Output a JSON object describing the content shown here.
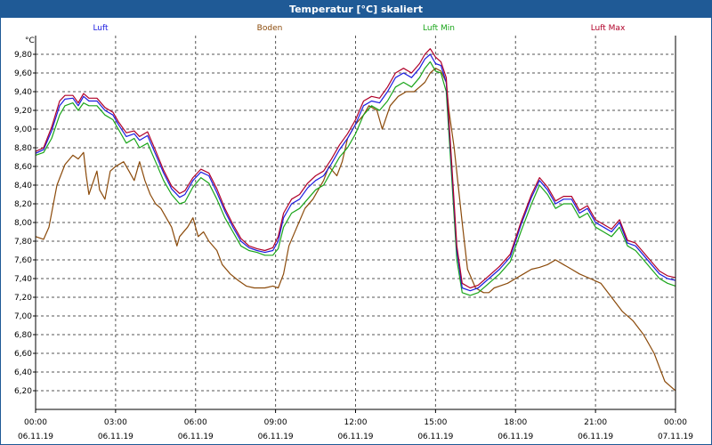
{
  "chart_data": {
    "type": "line",
    "title": "Temperatur [°C] skaliert",
    "ylabel": "°C",
    "ylim": [
      6.0,
      10.0
    ],
    "xlim": [
      0,
      24
    ],
    "y_ticks": [
      {
        "value": 6.2,
        "label": "6,20"
      },
      {
        "value": 6.4,
        "label": "6,40"
      },
      {
        "value": 6.6,
        "label": "6,60"
      },
      {
        "value": 6.8,
        "label": "6,80"
      },
      {
        "value": 7.0,
        "label": "7,00"
      },
      {
        "value": 7.2,
        "label": "7,20"
      },
      {
        "value": 7.4,
        "label": "7,40"
      },
      {
        "value": 7.6,
        "label": "7,60"
      },
      {
        "value": 7.8,
        "label": "7,80"
      },
      {
        "value": 8.0,
        "label": "8,00"
      },
      {
        "value": 8.2,
        "label": "8,20"
      },
      {
        "value": 8.4,
        "label": "8,40"
      },
      {
        "value": 8.6,
        "label": "8,60"
      },
      {
        "value": 8.8,
        "label": "8,80"
      },
      {
        "value": 9.0,
        "label": "9,00"
      },
      {
        "value": 9.2,
        "label": "9,20"
      },
      {
        "value": 9.4,
        "label": "9,40"
      },
      {
        "value": 9.6,
        "label": "9,60"
      },
      {
        "value": 9.8,
        "label": "9,80"
      }
    ],
    "x_ticks": [
      {
        "value": 0,
        "time": "00:00",
        "date": "06.11.19"
      },
      {
        "value": 3,
        "time": "03:00",
        "date": "06.11.19"
      },
      {
        "value": 6,
        "time": "06:00",
        "date": "06.11.19"
      },
      {
        "value": 9,
        "time": "09:00",
        "date": "06.11.19"
      },
      {
        "value": 12,
        "time": "12:00",
        "date": "06.11.19"
      },
      {
        "value": 15,
        "time": "15:00",
        "date": "06.11.19"
      },
      {
        "value": 18,
        "time": "18:00",
        "date": "06.11.19"
      },
      {
        "value": 21,
        "time": "21:00",
        "date": "06.11.19"
      },
      {
        "value": 24,
        "time": "00:00",
        "date": "07.11.19"
      }
    ],
    "grid": true,
    "legend_position": "top",
    "series": [
      {
        "name": "Boden",
        "color": "#8b4a0a",
        "x": [
          0,
          0.3,
          0.5,
          0.8,
          1.1,
          1.4,
          1.6,
          1.8,
          1.9,
          2.0,
          2.3,
          2.4,
          2.6,
          2.8,
          3.0,
          3.3,
          3.5,
          3.7,
          3.9,
          4.1,
          4.3,
          4.5,
          4.7,
          4.9,
          5.1,
          5.3,
          5.4,
          5.7,
          5.9,
          6.1,
          6.3,
          6.5,
          6.8,
          7.0,
          7.3,
          7.6,
          7.9,
          8.2,
          8.6,
          8.9,
          9.1,
          9.3,
          9.5,
          9.8,
          10.1,
          10.4,
          10.6,
          10.8,
          11.0,
          11.3,
          11.5,
          11.7,
          12.0,
          12.3,
          12.5,
          12.8,
          13.0,
          13.3,
          13.6,
          13.9,
          14.2,
          14.4,
          14.6,
          14.8,
          15.0,
          15.2,
          15.4,
          15.5,
          15.7,
          16.0,
          16.2,
          16.5,
          16.8,
          17.0,
          17.2,
          17.4,
          17.7,
          18.0,
          18.3,
          18.6,
          18.9,
          19.2,
          19.5,
          19.8,
          20.1,
          20.4,
          20.8,
          21.2,
          21.6,
          22.0,
          22.4,
          22.8,
          23.2,
          23.4,
          23.6,
          23.8,
          24.0
        ],
        "values": [
          7.85,
          7.82,
          7.95,
          8.4,
          8.62,
          8.72,
          8.68,
          8.75,
          8.5,
          8.3,
          8.55,
          8.35,
          8.25,
          8.55,
          8.6,
          8.65,
          8.55,
          8.45,
          8.65,
          8.45,
          8.3,
          8.2,
          8.15,
          8.05,
          7.95,
          7.75,
          7.85,
          7.95,
          8.05,
          7.85,
          7.9,
          7.8,
          7.7,
          7.55,
          7.45,
          7.38,
          7.32,
          7.3,
          7.3,
          7.32,
          7.3,
          7.45,
          7.75,
          7.95,
          8.15,
          8.25,
          8.35,
          8.45,
          8.6,
          8.5,
          8.65,
          8.9,
          9.05,
          9.15,
          9.25,
          9.2,
          9.0,
          9.25,
          9.35,
          9.4,
          9.4,
          9.45,
          9.5,
          9.6,
          9.65,
          9.62,
          9.5,
          9.2,
          8.8,
          8.0,
          7.5,
          7.3,
          7.25,
          7.25,
          7.3,
          7.32,
          7.35,
          7.4,
          7.45,
          7.5,
          7.52,
          7.55,
          7.6,
          7.55,
          7.5,
          7.45,
          7.4,
          7.35,
          7.2,
          7.05,
          6.95,
          6.8,
          6.6,
          6.45,
          6.3,
          6.25,
          6.2
        ]
      },
      {
        "name": "Luft Min",
        "color": "#1aa51a",
        "x": [
          0,
          0.3,
          0.6,
          0.9,
          1.1,
          1.4,
          1.6,
          1.8,
          2.0,
          2.3,
          2.6,
          2.9,
          3.1,
          3.4,
          3.7,
          3.9,
          4.2,
          4.5,
          4.8,
          5.1,
          5.4,
          5.6,
          5.9,
          6.2,
          6.5,
          6.8,
          7.1,
          7.4,
          7.7,
          8.0,
          8.3,
          8.6,
          8.9,
          9.1,
          9.3,
          9.6,
          9.9,
          10.2,
          10.5,
          10.8,
          11.1,
          11.4,
          11.7,
          12.0,
          12.3,
          12.6,
          12.9,
          13.2,
          13.5,
          13.8,
          14.1,
          14.4,
          14.6,
          14.8,
          15.0,
          15.2,
          15.4,
          15.6,
          15.8,
          16.0,
          16.3,
          16.6,
          17.0,
          17.4,
          17.8,
          18.2,
          18.6,
          18.9,
          19.2,
          19.5,
          19.8,
          20.1,
          20.4,
          20.7,
          21.0,
          21.3,
          21.6,
          21.9,
          22.2,
          22.5,
          22.8,
          23.1,
          23.4,
          23.7,
          24.0
        ],
        "values": [
          8.72,
          8.75,
          8.9,
          9.15,
          9.25,
          9.28,
          9.2,
          9.28,
          9.25,
          9.25,
          9.15,
          9.1,
          9.0,
          8.85,
          8.9,
          8.8,
          8.85,
          8.65,
          8.45,
          8.3,
          8.2,
          8.22,
          8.38,
          8.48,
          8.42,
          8.25,
          8.05,
          7.9,
          7.75,
          7.7,
          7.68,
          7.65,
          7.65,
          7.72,
          7.95,
          8.1,
          8.15,
          8.25,
          8.35,
          8.4,
          8.55,
          8.7,
          8.8,
          8.95,
          9.15,
          9.25,
          9.2,
          9.3,
          9.45,
          9.5,
          9.45,
          9.55,
          9.65,
          9.72,
          9.62,
          9.6,
          9.4,
          8.5,
          7.6,
          7.25,
          7.22,
          7.25,
          7.35,
          7.45,
          7.58,
          7.9,
          8.2,
          8.4,
          8.3,
          8.15,
          8.2,
          8.2,
          8.05,
          8.1,
          7.95,
          7.9,
          7.85,
          7.95,
          7.75,
          7.7,
          7.6,
          7.5,
          7.4,
          7.35,
          7.32
        ]
      },
      {
        "name": "Luft",
        "color": "#1c1ce0",
        "x": [
          0,
          0.3,
          0.6,
          0.9,
          1.1,
          1.4,
          1.6,
          1.8,
          2.0,
          2.3,
          2.6,
          2.9,
          3.1,
          3.4,
          3.7,
          3.9,
          4.2,
          4.5,
          4.8,
          5.1,
          5.4,
          5.6,
          5.9,
          6.2,
          6.5,
          6.8,
          7.1,
          7.4,
          7.7,
          8.0,
          8.3,
          8.6,
          8.9,
          9.1,
          9.3,
          9.6,
          9.9,
          10.2,
          10.5,
          10.8,
          11.1,
          11.4,
          11.7,
          12.0,
          12.3,
          12.6,
          12.9,
          13.2,
          13.5,
          13.8,
          14.1,
          14.4,
          14.6,
          14.8,
          15.0,
          15.2,
          15.4,
          15.6,
          15.8,
          16.0,
          16.3,
          16.6,
          17.0,
          17.4,
          17.8,
          18.2,
          18.6,
          18.9,
          19.2,
          19.5,
          19.8,
          20.1,
          20.4,
          20.7,
          21.0,
          21.3,
          21.6,
          21.9,
          22.2,
          22.5,
          22.8,
          23.1,
          23.4,
          23.7,
          24.0
        ],
        "values": [
          8.74,
          8.78,
          8.98,
          9.25,
          9.32,
          9.33,
          9.25,
          9.35,
          9.3,
          9.3,
          9.2,
          9.15,
          9.05,
          8.92,
          8.95,
          8.88,
          8.93,
          8.73,
          8.53,
          8.36,
          8.27,
          8.3,
          8.45,
          8.54,
          8.5,
          8.32,
          8.12,
          7.95,
          7.8,
          7.73,
          7.7,
          7.68,
          7.7,
          7.8,
          8.05,
          8.2,
          8.25,
          8.37,
          8.45,
          8.5,
          8.63,
          8.78,
          8.9,
          9.05,
          9.25,
          9.3,
          9.28,
          9.4,
          9.55,
          9.6,
          9.55,
          9.65,
          9.75,
          9.8,
          9.7,
          9.68,
          9.5,
          8.6,
          7.7,
          7.3,
          7.27,
          7.3,
          7.4,
          7.5,
          7.63,
          7.97,
          8.27,
          8.45,
          8.35,
          8.2,
          8.25,
          8.25,
          8.1,
          8.15,
          8.0,
          7.95,
          7.9,
          8.0,
          7.78,
          7.75,
          7.65,
          7.55,
          7.45,
          7.4,
          7.38
        ]
      },
      {
        "name": "Luft Max",
        "color": "#b00028",
        "x": [
          0,
          0.3,
          0.6,
          0.9,
          1.1,
          1.4,
          1.6,
          1.8,
          2.0,
          2.3,
          2.6,
          2.9,
          3.1,
          3.4,
          3.7,
          3.9,
          4.2,
          4.5,
          4.8,
          5.1,
          5.4,
          5.6,
          5.9,
          6.2,
          6.5,
          6.8,
          7.1,
          7.4,
          7.7,
          8.0,
          8.3,
          8.6,
          8.9,
          9.1,
          9.3,
          9.6,
          9.9,
          10.2,
          10.5,
          10.8,
          11.1,
          11.4,
          11.7,
          12.0,
          12.3,
          12.6,
          12.9,
          13.2,
          13.5,
          13.8,
          14.1,
          14.4,
          14.6,
          14.8,
          15.0,
          15.2,
          15.4,
          15.6,
          15.8,
          16.0,
          16.3,
          16.6,
          17.0,
          17.4,
          17.8,
          18.2,
          18.6,
          18.9,
          19.2,
          19.5,
          19.8,
          20.1,
          20.4,
          20.7,
          21.0,
          21.3,
          21.6,
          21.9,
          22.2,
          22.5,
          22.8,
          23.1,
          23.4,
          23.7,
          24.0
        ],
        "values": [
          8.76,
          8.8,
          9.02,
          9.3,
          9.36,
          9.36,
          9.28,
          9.38,
          9.33,
          9.33,
          9.23,
          9.18,
          9.08,
          8.96,
          8.98,
          8.92,
          8.97,
          8.77,
          8.56,
          8.39,
          8.31,
          8.34,
          8.48,
          8.57,
          8.53,
          8.36,
          8.15,
          7.98,
          7.83,
          7.75,
          7.72,
          7.7,
          7.73,
          7.85,
          8.1,
          8.25,
          8.3,
          8.42,
          8.5,
          8.55,
          8.68,
          8.83,
          8.95,
          9.1,
          9.3,
          9.35,
          9.33,
          9.45,
          9.6,
          9.65,
          9.6,
          9.7,
          9.8,
          9.86,
          9.77,
          9.72,
          9.55,
          8.65,
          7.75,
          7.35,
          7.3,
          7.33,
          7.43,
          7.53,
          7.66,
          8.0,
          8.3,
          8.48,
          8.38,
          8.23,
          8.28,
          8.28,
          8.13,
          8.18,
          8.03,
          7.98,
          7.93,
          8.03,
          7.81,
          7.78,
          7.68,
          7.58,
          7.48,
          7.43,
          7.41
        ]
      }
    ]
  }
}
